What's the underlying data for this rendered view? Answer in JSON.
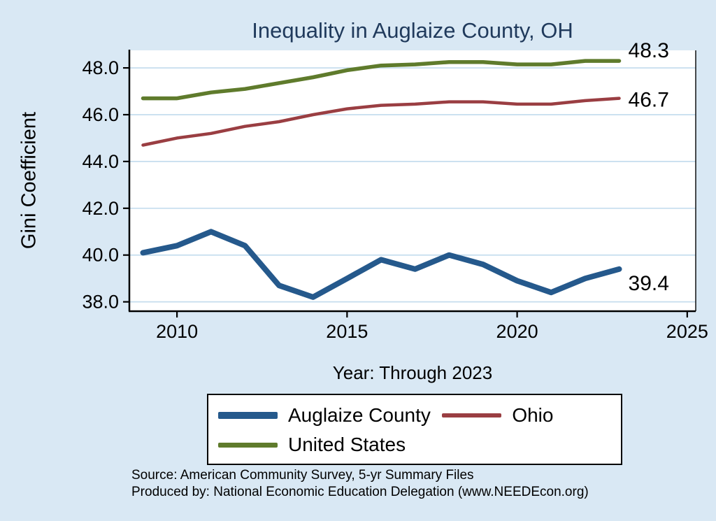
{
  "title": "Inequality in Auglaize County, OH",
  "ylabel": "Gini Coefficient",
  "xlabel": "Year: Through 2023",
  "source_line1": "Source: American Community Survey, 5-yr Summary Files",
  "source_line2": "Produced by: National Economic Education Delegation (www.NEEDEcon.org)",
  "colors": {
    "background": "#d9e8f4",
    "plot_background": "#ffffff",
    "grid": "#c5ddee",
    "axis": "#000000",
    "title": "#203a5c"
  },
  "chart_data": {
    "type": "line",
    "title": "Inequality in Auglaize County, OH",
    "xlabel": "Year: Through 2023",
    "ylabel": "Gini Coefficient",
    "grid": true,
    "legend_position": "bottom",
    "x": [
      2009,
      2010,
      2011,
      2012,
      2013,
      2014,
      2015,
      2016,
      2017,
      2018,
      2019,
      2020,
      2021,
      2022,
      2023
    ],
    "x_ticks": [
      2010,
      2015,
      2020,
      2025
    ],
    "x_tick_labels": [
      "2010",
      "2015",
      "2020",
      "2025"
    ],
    "y_ticks": [
      38.0,
      40.0,
      42.0,
      44.0,
      46.0,
      48.0
    ],
    "y_tick_labels": [
      "38.0",
      "40.0",
      "42.0",
      "44.0",
      "46.0",
      "48.0"
    ],
    "x_domain": [
      2008.6,
      2025.25
    ],
    "y_domain": [
      37.6,
      48.75
    ],
    "series": [
      {
        "name": "Auglaize County",
        "color": "#25598c",
        "width": 8,
        "end_label": "39.4",
        "values": [
          40.1,
          40.4,
          41.0,
          40.4,
          38.7,
          38.2,
          39.0,
          39.8,
          39.4,
          40.0,
          39.6,
          38.9,
          38.4,
          39.0,
          39.4
        ]
      },
      {
        "name": "Ohio",
        "color": "#9a3e42",
        "width": 4.5,
        "end_label": "46.7",
        "values": [
          44.7,
          45.0,
          45.2,
          45.5,
          45.7,
          46.0,
          46.25,
          46.4,
          46.45,
          46.55,
          46.55,
          46.45,
          46.45,
          46.6,
          46.7
        ]
      },
      {
        "name": "United States",
        "color": "#5f7b2c",
        "width": 5.5,
        "end_label": "48.3",
        "values": [
          46.7,
          46.7,
          46.95,
          47.1,
          47.35,
          47.6,
          47.9,
          48.1,
          48.15,
          48.25,
          48.25,
          48.15,
          48.15,
          48.3,
          48.3
        ]
      }
    ]
  }
}
